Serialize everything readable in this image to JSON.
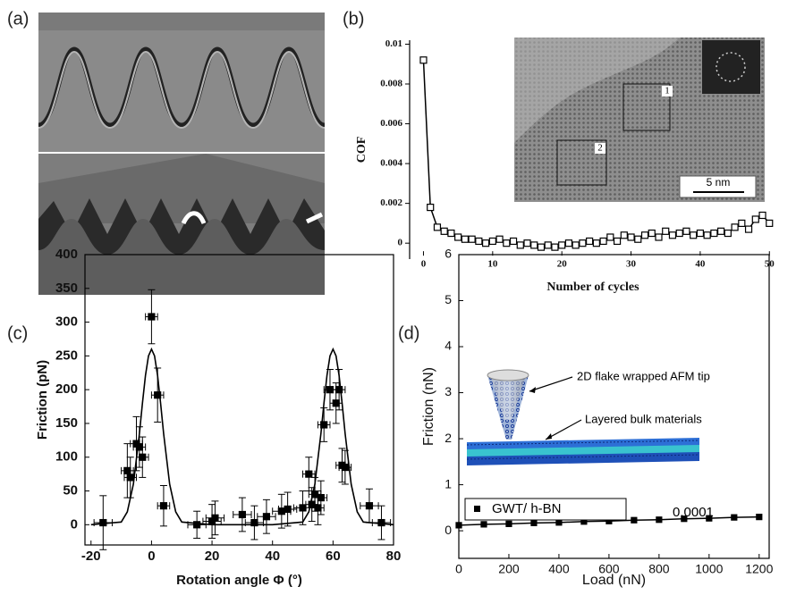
{
  "panel_labels": [
    "(a)",
    "(b)",
    "(c)",
    "(d)"
  ],
  "chart_data": [
    {
      "type": "line",
      "xlabel": "Number of cycles",
      "ylabel": "COF",
      "x": [
        0,
        1,
        2,
        3,
        4,
        5,
        6,
        7,
        8,
        9,
        10,
        11,
        12,
        13,
        14,
        15,
        16,
        17,
        18,
        19,
        20,
        21,
        22,
        23,
        24,
        25,
        26,
        27,
        28,
        29,
        30,
        31,
        32,
        33,
        34,
        35,
        36,
        37,
        38,
        39,
        40,
        41,
        42,
        43,
        44,
        45,
        46,
        47,
        48,
        49,
        50
      ],
      "values": [
        0.0092,
        0.0018,
        0.0008,
        0.0006,
        0.0005,
        0.0003,
        0.0002,
        0.0002,
        0.0001,
        0.0,
        0.0001,
        0.0002,
        0.0,
        0.0001,
        -0.0001,
        0.0,
        -0.0001,
        -0.0002,
        -0.0001,
        -0.0002,
        -0.0001,
        0.0,
        -0.0001,
        0.0,
        0.0001,
        0.0,
        0.0001,
        0.0003,
        0.0001,
        0.0004,
        0.0003,
        0.0002,
        0.0004,
        0.0005,
        0.0003,
        0.0006,
        0.0004,
        0.0005,
        0.0006,
        0.0004,
        0.0005,
        0.0004,
        0.0005,
        0.0006,
        0.0005,
        0.0008,
        0.001,
        0.0007,
        0.0012,
        0.0014,
        0.001
      ],
      "color": "#000000",
      "marker": "open-square",
      "xlim": [
        -2,
        51
      ],
      "xticks": [
        0,
        10,
        20,
        30,
        40,
        50
      ],
      "ylim": [
        -0.0008,
        0.0102
      ],
      "yticks": [
        0,
        0.002,
        0.004,
        0.006,
        0.008,
        0.01
      ],
      "annotations": [
        "1",
        "2",
        "5 nm"
      ]
    },
    {
      "type": "scatter",
      "xlabel": "Rotation angle Φ (°)",
      "ylabel": "Friction (pN)",
      "x": [
        -16,
        -8,
        -7,
        -5,
        -4,
        -3,
        0,
        2,
        4,
        15,
        20,
        21,
        30,
        34,
        38,
        43,
        45,
        50,
        52,
        53,
        54,
        55,
        56,
        57,
        59,
        61,
        62,
        63,
        64,
        72,
        76
      ],
      "values": [
        3,
        80,
        70,
        120,
        115,
        100,
        308,
        192,
        28,
        0,
        5,
        10,
        15,
        3,
        12,
        20,
        23,
        25,
        75,
        30,
        45,
        25,
        40,
        148,
        200,
        180,
        200,
        88,
        85,
        28,
        3
      ],
      "xerr": [
        3,
        2,
        2,
        2,
        2,
        2,
        2,
        2,
        2,
        3,
        3,
        3,
        3,
        3,
        3,
        3,
        3,
        3,
        2,
        2,
        2,
        2,
        2,
        2,
        2,
        2,
        2,
        2,
        2,
        3,
        3
      ],
      "yerr": [
        40,
        40,
        30,
        40,
        30,
        30,
        40,
        40,
        30,
        20,
        25,
        25,
        25,
        25,
        25,
        25,
        25,
        25,
        25,
        25,
        25,
        25,
        25,
        25,
        30,
        30,
        30,
        25,
        25,
        25,
        25
      ],
      "fit_x": [
        -20,
        -10,
        -8,
        -6,
        -4,
        -3,
        -2,
        -1,
        0,
        1,
        2,
        3,
        4,
        6,
        8,
        10,
        20,
        30,
        40,
        50,
        52,
        54,
        56,
        57,
        58,
        59,
        60,
        61,
        62,
        63,
        64,
        66,
        68,
        70,
        80
      ],
      "fit_values": [
        0,
        4,
        19,
        60,
        135,
        180,
        221,
        250,
        260,
        250,
        221,
        180,
        135,
        60,
        19,
        4,
        0,
        0,
        0,
        4,
        19,
        60,
        135,
        180,
        221,
        250,
        260,
        250,
        221,
        180,
        135,
        60,
        19,
        4,
        0
      ],
      "color": "#000000",
      "xlim": [
        -22,
        80
      ],
      "xticks": [
        -20,
        0,
        20,
        40,
        60,
        80
      ],
      "ylim": [
        -30,
        400
      ],
      "yticks": [
        0,
        50,
        100,
        150,
        200,
        250,
        300,
        350,
        400
      ]
    },
    {
      "type": "line",
      "xlabel": "Load (nN)",
      "ylabel": "Friction (nN)",
      "series": [
        {
          "name": "GWT/ h-BN",
          "color": "#000000",
          "x": [
            0,
            100,
            200,
            300,
            400,
            500,
            600,
            700,
            800,
            900,
            1000,
            1100,
            1200
          ],
          "values": [
            0.12,
            0.14,
            0.15,
            0.17,
            0.18,
            0.2,
            0.21,
            0.23,
            0.24,
            0.26,
            0.27,
            0.29,
            0.3
          ]
        }
      ],
      "marker": "filled-square",
      "xlim": [
        0,
        1240
      ],
      "xticks": [
        0,
        200,
        400,
        600,
        800,
        1000,
        1200
      ],
      "ylim": [
        -0.6,
        6
      ],
      "yticks": [
        0,
        1,
        2,
        3,
        4,
        5,
        6
      ],
      "annotations": [
        "0.0001",
        "2D flake wrapped AFM tip",
        "Layered bulk materials"
      ]
    }
  ]
}
